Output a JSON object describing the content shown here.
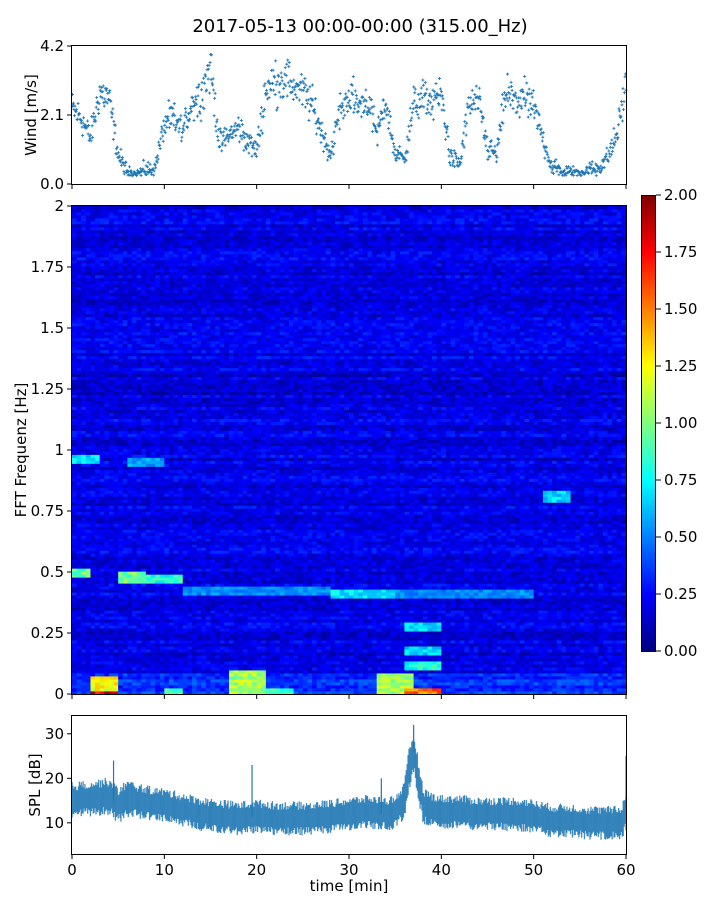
{
  "figure": {
    "title": "2017-05-13 00:00-00:00 (315.00_Hz)"
  },
  "chart_data": [
    {
      "type": "scatter",
      "panel": "wind",
      "ylabel": "Wind [m/s]",
      "xlim": [
        0,
        60
      ],
      "ylim": [
        0,
        4.2
      ],
      "yticks": [
        0.0,
        2.1,
        4.2
      ],
      "ytick_labels": [
        "0.0",
        "2.1",
        "4.2"
      ],
      "marker": "+",
      "color": "#1f77b4",
      "series": [
        {
          "x": [
            0,
            1,
            2,
            3,
            4,
            5,
            6,
            7,
            8,
            9,
            10,
            11,
            12,
            13,
            14,
            15,
            16,
            17,
            18,
            19,
            20,
            21,
            22,
            23,
            24,
            25,
            26,
            27,
            28,
            29,
            30,
            31,
            32,
            33,
            34,
            35,
            36,
            37,
            38,
            39,
            40,
            41,
            42,
            43,
            44,
            45,
            46,
            47,
            48,
            49,
            50,
            51,
            52,
            53,
            54,
            55,
            56,
            57,
            58,
            59,
            60
          ],
          "y": [
            2.3,
            2.0,
            1.4,
            2.8,
            2.6,
            0.9,
            0.3,
            0.3,
            0.4,
            0.5,
            1.8,
            2.0,
            1.6,
            2.5,
            2.7,
            3.6,
            1.2,
            1.5,
            1.7,
            1.3,
            1.0,
            2.9,
            3.1,
            3.2,
            3.0,
            2.8,
            2.4,
            1.6,
            0.9,
            2.2,
            2.7,
            2.4,
            2.6,
            1.5,
            2.5,
            0.9,
            0.8,
            2.4,
            2.6,
            2.5,
            2.7,
            0.8,
            0.6,
            2.4,
            2.5,
            1.1,
            0.9,
            2.8,
            2.5,
            2.6,
            2.3,
            1.4,
            0.5,
            0.4,
            0.3,
            0.3,
            0.4,
            0.5,
            0.8,
            1.5,
            3.0
          ]
        }
      ]
    },
    {
      "type": "heatmap",
      "panel": "spectrogram",
      "ylabel": "FFT Frequenz [Hz]",
      "xlim": [
        0,
        60
      ],
      "ylim": [
        0,
        2
      ],
      "yticks": [
        0,
        0.25,
        0.5,
        0.75,
        1,
        1.25,
        1.5,
        1.75,
        2
      ],
      "ytick_labels": [
        "0",
        "0.25",
        "0.5",
        "0.75",
        "1",
        "1.25",
        "1.5",
        "1.75",
        "2"
      ],
      "colormap": "jet",
      "colorbar": {
        "vmin": 0.0,
        "vmax": 2.0,
        "ticks": [
          0.0,
          0.25,
          0.5,
          0.75,
          1.0,
          1.25,
          1.5,
          1.75,
          2.0
        ],
        "tick_labels": [
          "0.00",
          "0.25",
          "0.50",
          "0.75",
          "1.00",
          "1.25",
          "1.50",
          "1.75",
          "2.00"
        ]
      },
      "background_level": 0.2,
      "bands": [
        {
          "x_range": [
            0,
            3
          ],
          "freq": 0.96,
          "level": 0.75
        },
        {
          "x_range": [
            0,
            2
          ],
          "freq": 0.5,
          "level": 1.0
        },
        {
          "x_range": [
            5,
            8
          ],
          "freq": 0.48,
          "level": 1.0
        },
        {
          "x_range": [
            6,
            10
          ],
          "freq": 0.95,
          "level": 0.6
        },
        {
          "x_range": [
            8,
            12
          ],
          "freq": 0.47,
          "level": 0.85
        },
        {
          "x_range": [
            12,
            28
          ],
          "freq": 0.42,
          "level": 0.55
        },
        {
          "x_range": [
            28,
            35
          ],
          "freq": 0.41,
          "level": 0.75
        },
        {
          "x_range": [
            35,
            50
          ],
          "freq": 0.41,
          "level": 0.55
        },
        {
          "x_range": [
            36,
            40
          ],
          "freq": 0.28,
          "level": 0.7
        },
        {
          "x_range": [
            36,
            40
          ],
          "freq": 0.18,
          "level": 0.7
        },
        {
          "x_range": [
            36,
            40
          ],
          "freq": 0.12,
          "level": 0.85
        },
        {
          "x_range": [
            51,
            54
          ],
          "freq": 0.81,
          "level": 0.7
        }
      ],
      "hot_spots": [
        {
          "x_range": [
            2,
            5
          ],
          "f_range": [
            0,
            0.07
          ],
          "level": 1.25
        },
        {
          "x_range": [
            2,
            5
          ],
          "f_range": [
            0,
            0.015
          ],
          "level": 1.8
        },
        {
          "x_range": [
            17,
            21
          ],
          "f_range": [
            0,
            0.1
          ],
          "level": 1.1
        },
        {
          "x_range": [
            33,
            37
          ],
          "f_range": [
            0,
            0.08
          ],
          "level": 1.1
        },
        {
          "x_range": [
            36,
            40
          ],
          "f_range": [
            0,
            0.02
          ],
          "level": 1.6
        },
        {
          "x_range": [
            10,
            12
          ],
          "f_range": [
            0,
            0.02
          ],
          "level": 0.9
        },
        {
          "x_range": [
            21,
            24
          ],
          "f_range": [
            0,
            0.02
          ],
          "level": 0.9
        }
      ]
    },
    {
      "type": "area",
      "panel": "spl",
      "ylabel": "SPL [dB]",
      "xlabel": "time [min]",
      "xlim": [
        0,
        60
      ],
      "ylim": [
        3,
        34
      ],
      "yticks": [
        10,
        20,
        30
      ],
      "ytick_labels": [
        "10",
        "20",
        "30"
      ],
      "xticks": [
        0,
        10,
        20,
        30,
        40,
        50,
        60
      ],
      "xtick_labels": [
        "0",
        "10",
        "20",
        "30",
        "40",
        "50",
        "60"
      ],
      "color": "#1f77b4",
      "series": [
        {
          "x": [
            0,
            2,
            4,
            5,
            6,
            8,
            10,
            12,
            14,
            16,
            18,
            20,
            22,
            24,
            26,
            28,
            30,
            32,
            34,
            35,
            36,
            36.5,
            37,
            37.5,
            38,
            39,
            40,
            42,
            44,
            46,
            48,
            50,
            52,
            54,
            56,
            58,
            59.5,
            60
          ],
          "mean": [
            15,
            15.5,
            16,
            14,
            15.5,
            14.5,
            14,
            13,
            12,
            11.5,
            11,
            11.5,
            11,
            11,
            11,
            11.5,
            12,
            12.5,
            12,
            12.5,
            15,
            22,
            26,
            20,
            14,
            13,
            12.5,
            12.5,
            12,
            12,
            12,
            11.5,
            10.5,
            10.5,
            10,
            10,
            10,
            13
          ],
          "spread": [
            3.5,
            3.5,
            3.5,
            3.5,
            3.5,
            3.3,
            3.2,
            3.2,
            3.2,
            3.2,
            3.2,
            3.2,
            3.2,
            3.2,
            3.2,
            3.2,
            3.2,
            3.2,
            3.2,
            3.2,
            3.5,
            4,
            4,
            4,
            3.5,
            3.2,
            3.2,
            3.2,
            3.2,
            3.2,
            3.2,
            3.2,
            3.2,
            3.2,
            3.2,
            3.2,
            3.2,
            4
          ],
          "peaks": [
            [
              4.5,
              24
            ],
            [
              19.5,
              23
            ],
            [
              33.5,
              20
            ],
            [
              37,
              32
            ],
            [
              60,
              25
            ]
          ]
        }
      ]
    }
  ]
}
